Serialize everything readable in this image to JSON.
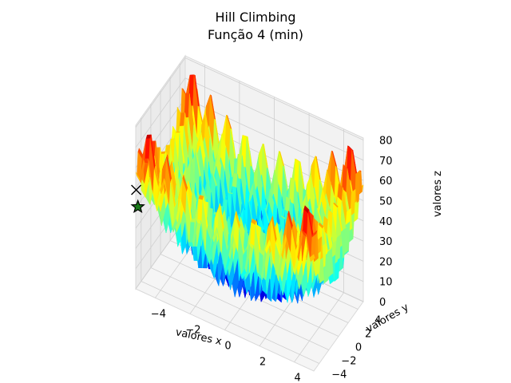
{
  "chart_data": {
    "type": "surface3d",
    "title": "Hill Climbing",
    "subtitle": "Função 4 (min)",
    "xlabel": "valores x",
    "ylabel": "valores y",
    "zlabel": "valores z",
    "xlim": [
      -5.12,
      5.12
    ],
    "ylim": [
      -5.12,
      5.12
    ],
    "zlim": [
      0,
      81
    ],
    "x_ticks": [
      "−4",
      "−2",
      "0",
      "2",
      "4"
    ],
    "y_ticks": [
      "−4",
      "−2",
      "0",
      "2",
      "4"
    ],
    "z_ticks": [
      "0",
      "10",
      "20",
      "30",
      "40",
      "50",
      "60",
      "70",
      "80"
    ],
    "colormap": "jet",
    "grid": true,
    "markers": [
      {
        "name": "start",
        "symbol": "x",
        "color": "#000000",
        "x": -5.1,
        "y": -5.1,
        "z": 49
      },
      {
        "name": "best",
        "symbol": "star",
        "color": "#1a7a1a",
        "x": -5.0,
        "y": -5.1,
        "z": 41
      }
    ]
  }
}
